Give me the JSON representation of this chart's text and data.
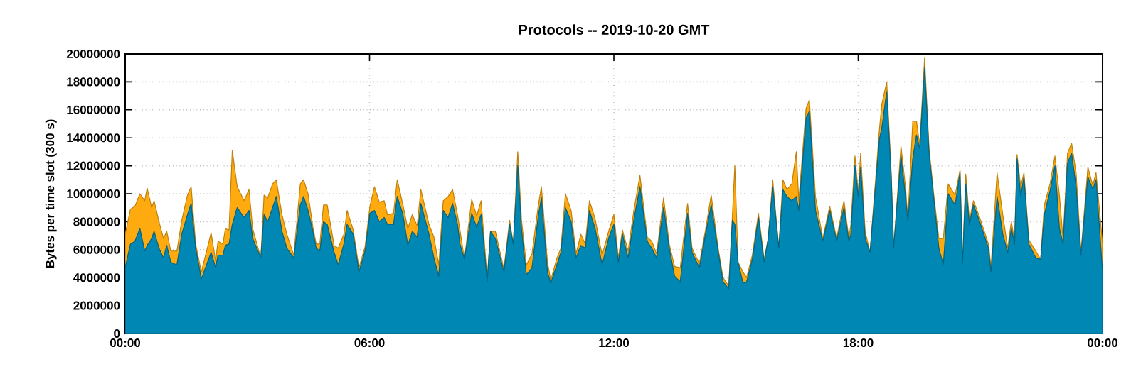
{
  "chart_data": {
    "type": "area",
    "title": "Protocols -- 2019-10-20 GMT",
    "ylabel": "Bytes per time slot (300 s)",
    "stacked": true,
    "grid": true,
    "marker": "none",
    "xlim": [
      0,
      24
    ],
    "xticks": [
      {
        "value": 0,
        "label": "00:00"
      },
      {
        "value": 6,
        "label": "06:00"
      },
      {
        "value": 12,
        "label": "12:00"
      },
      {
        "value": 18,
        "label": "18:00"
      },
      {
        "value": 24,
        "label": "00:00"
      }
    ],
    "ylim": [
      0,
      20000000
    ],
    "yticks": [
      0,
      2000000,
      4000000,
      6000000,
      8000000,
      10000000,
      12000000,
      14000000,
      16000000,
      18000000,
      20000000
    ],
    "x": [
      0,
      0.13,
      0.24,
      0.36,
      0.48,
      0.54,
      0.65,
      0.71,
      0.83,
      0.94,
      1.02,
      1.12,
      1.27,
      1.39,
      1.53,
      1.62,
      1.73,
      1.87,
      2.11,
      2.22,
      2.28,
      2.4,
      2.46,
      2.55,
      2.63,
      2.75,
      2.92,
      3.04,
      3.13,
      3.33,
      3.41,
      3.5,
      3.62,
      3.71,
      3.85,
      3.97,
      4.14,
      4.3,
      4.38,
      4.49,
      4.61,
      4.69,
      4.78,
      4.87,
      4.96,
      5.13,
      5.23,
      5.37,
      5.45,
      5.6,
      5.74,
      5.89,
      6.01,
      6.12,
      6.24,
      6.36,
      6.44,
      6.59,
      6.68,
      6.82,
      6.94,
      7.05,
      7.17,
      7.26,
      7.46,
      7.58,
      7.7,
      7.81,
      7.93,
      8.04,
      8.16,
      8.22,
      8.33,
      8.51,
      8.63,
      8.74,
      8.89,
      8.97,
      9.09,
      9.3,
      9.44,
      9.53,
      9.64,
      9.73,
      9.85,
      9.99,
      10.14,
      10.22,
      10.37,
      10.45,
      10.6,
      10.7,
      10.81,
      10.95,
      11.07,
      11.19,
      11.3,
      11.4,
      11.54,
      11.71,
      11.88,
      12.0,
      12.11,
      12.21,
      12.35,
      12.49,
      12.64,
      12.82,
      12.93,
      13.05,
      13.22,
      13.36,
      13.49,
      13.63,
      13.81,
      13.92,
      14.1,
      14.25,
      14.39,
      14.56,
      14.68,
      14.82,
      14.91,
      14.97,
      15.05,
      15.17,
      15.26,
      15.4,
      15.55,
      15.69,
      15.79,
      15.9,
      16.05,
      16.15,
      16.25,
      16.37,
      16.48,
      16.54,
      16.72,
      16.8,
      16.95,
      17.13,
      17.3,
      17.47,
      17.65,
      17.77,
      17.82,
      17.92,
      18.0,
      18.06,
      18.17,
      18.29,
      18.52,
      18.58,
      18.7,
      18.81,
      18.87,
      19.05,
      19.16,
      19.22,
      19.34,
      19.43,
      19.51,
      19.63,
      19.74,
      19.86,
      19.98,
      20.09,
      20.21,
      20.38,
      20.5,
      20.56,
      20.64,
      20.73,
      20.83,
      20.97,
      21.2,
      21.26,
      21.41,
      21.55,
      21.67,
      21.76,
      21.84,
      21.9,
      21.99,
      22.07,
      22.19,
      22.36,
      22.48,
      22.57,
      22.71,
      22.83,
      22.94,
      23.03,
      23.14,
      23.24,
      23.35,
      23.47,
      23.64,
      23.76,
      23.84,
      24
    ],
    "series": [
      {
        "color": "#0087b3",
        "values": [
          4700000,
          6400000,
          6600000,
          7500000,
          5900000,
          6300000,
          6800000,
          7300000,
          6100000,
          5400000,
          6300000,
          5100000,
          4900000,
          7100000,
          8500000,
          9300000,
          6100000,
          3900000,
          5800000,
          4700000,
          5600000,
          5600000,
          6300000,
          6400000,
          7800000,
          9000000,
          8300000,
          8800000,
          6800000,
          5400000,
          8500000,
          8000000,
          9000000,
          9800000,
          7300000,
          6100000,
          5400000,
          9200000,
          9800000,
          8800000,
          7300000,
          6100000,
          5900000,
          8000000,
          7800000,
          5800000,
          4900000,
          6400000,
          7800000,
          7100000,
          4400000,
          5900000,
          8600000,
          8800000,
          8000000,
          8300000,
          7800000,
          7800000,
          9800000,
          8500000,
          6300000,
          7300000,
          6900000,
          9300000,
          7100000,
          5400000,
          4100000,
          8800000,
          8300000,
          9300000,
          7800000,
          6400000,
          5300000,
          8600000,
          7600000,
          8500000,
          3700000,
          7300000,
          6800000,
          4400000,
          7800000,
          6400000,
          12000000,
          7500000,
          4200000,
          4700000,
          8300000,
          9700000,
          4400000,
          3600000,
          4900000,
          5800000,
          9000000,
          8000000,
          5400000,
          6300000,
          6100000,
          8800000,
          7500000,
          4900000,
          6900000,
          7800000,
          5100000,
          7100000,
          5400000,
          8100000,
          10500000,
          6600000,
          6100000,
          5400000,
          9000000,
          6100000,
          4100000,
          3700000,
          8600000,
          5800000,
          4700000,
          7100000,
          9200000,
          5900000,
          3700000,
          3200000,
          8100000,
          7800000,
          5100000,
          3600000,
          3700000,
          5300000,
          8300000,
          5100000,
          6800000,
          10500000,
          6100000,
          10300000,
          9800000,
          9500000,
          9800000,
          8800000,
          15400000,
          15900000,
          8800000,
          6600000,
          8800000,
          6600000,
          9000000,
          6600000,
          7100000,
          12000000,
          9800000,
          11900000,
          6800000,
          5800000,
          13900000,
          14700000,
          17300000,
          11200000,
          6100000,
          12700000,
          9800000,
          8000000,
          12500000,
          14200000,
          13200000,
          19000000,
          12900000,
          9500000,
          6100000,
          4900000,
          10000000,
          9200000,
          11500000,
          4900000,
          10700000,
          7800000,
          9200000,
          8100000,
          6100000,
          4400000,
          9800000,
          7100000,
          5800000,
          7500000,
          6400000,
          12500000,
          9800000,
          11200000,
          6400000,
          5400000,
          5300000,
          8500000,
          10200000,
          12000000,
          7500000,
          6400000,
          12200000,
          12900000,
          10500000,
          5600000,
          11200000,
          10300000,
          11000000,
          4400000
        ]
      },
      {
        "color": "#ffab10",
        "values": [
          2400000,
          2500000,
          2500000,
          2500000,
          3600000,
          4100000,
          2200000,
          2200000,
          1900000,
          1400000,
          1000000,
          800000,
          1000000,
          1000000,
          1400000,
          1200000,
          300000,
          500000,
          1400000,
          500000,
          1000000,
          800000,
          1200000,
          1000000,
          5300000,
          1500000,
          1200000,
          1500000,
          700000,
          0,
          1400000,
          1700000,
          1700000,
          1200000,
          1200000,
          1000000,
          200000,
          1500000,
          1200000,
          1200000,
          300000,
          300000,
          500000,
          1200000,
          1400000,
          500000,
          1200000,
          700000,
          1000000,
          300000,
          300000,
          300000,
          500000,
          1700000,
          1400000,
          1200000,
          700000,
          800000,
          1200000,
          700000,
          1200000,
          1200000,
          800000,
          1000000,
          700000,
          1500000,
          800000,
          700000,
          1500000,
          1000000,
          700000,
          1000000,
          0,
          1000000,
          800000,
          1000000,
          200000,
          0,
          500000,
          200000,
          300000,
          0,
          1000000,
          700000,
          700000,
          1000000,
          800000,
          800000,
          700000,
          200000,
          500000,
          300000,
          1000000,
          800000,
          300000,
          800000,
          300000,
          700000,
          700000,
          700000,
          500000,
          700000,
          300000,
          300000,
          500000,
          700000,
          800000,
          300000,
          500000,
          300000,
          700000,
          300000,
          700000,
          1000000,
          700000,
          300000,
          300000,
          300000,
          700000,
          200000,
          300000,
          200000,
          300000,
          4200000,
          0,
          800000,
          300000,
          300000,
          300000,
          200000,
          0,
          500000,
          0,
          700000,
          500000,
          1200000,
          3200000,
          700000,
          700000,
          800000,
          1000000,
          200000,
          300000,
          200000,
          500000,
          200000,
          700000,
          700000,
          300000,
          1000000,
          500000,
          0,
          700000,
          1700000,
          700000,
          300000,
          0,
          700000,
          700000,
          200000,
          2700000,
          1000000,
          300000,
          700000,
          300000,
          300000,
          700000,
          1900000,
          700000,
          700000,
          200000,
          0,
          700000,
          300000,
          300000,
          300000,
          300000,
          300000,
          1700000,
          1400000,
          300000,
          500000,
          200000,
          300000,
          700000,
          300000,
          300000,
          500000,
          0,
          700000,
          500000,
          700000,
          2400000,
          300000,
          700000,
          700000,
          1000000,
          200000,
          700000,
          300000,
          500000,
          2000000
        ]
      }
    ]
  }
}
